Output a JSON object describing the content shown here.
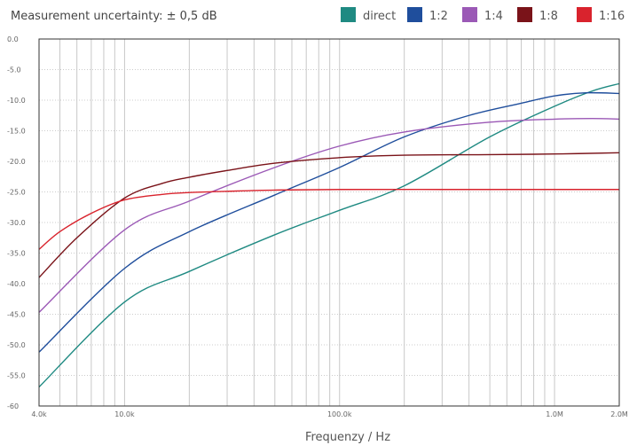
{
  "chart_data": {
    "type": "line",
    "title": "Measurement uncertainty: ± 0,5 dB",
    "xlabel": "Frequenzy / Hz",
    "ylabel": "",
    "x_scale": "log",
    "xlim": [
      4000,
      2000000
    ],
    "ylim": [
      -60,
      0
    ],
    "grid": true,
    "legend_position": "top-right",
    "y_ticks": [
      "0.0",
      "-5.0",
      "-10.0",
      "-15.0",
      "-20.0",
      "-25.0",
      "-30.0",
      "-35.0",
      "-40.0",
      "-45.0",
      "-50.0",
      "-55.0",
      "-60"
    ],
    "y_tick_values": [
      0,
      -5,
      -10,
      -15,
      -20,
      -25,
      -30,
      -35,
      -40,
      -45,
      -50,
      -55,
      -60
    ],
    "x_ticks": [
      {
        "label": "4.0k",
        "value": 4000
      },
      {
        "label": "10.0k",
        "value": 10000
      },
      {
        "label": "100.0k",
        "value": 100000
      },
      {
        "label": "1.0M",
        "value": 1000000
      },
      {
        "label": "2.0M",
        "value": 2000000
      }
    ],
    "series": [
      {
        "name": "direct",
        "color": "#1f8a82",
        "x": [
          4000,
          10000,
          20000,
          50000,
          100000,
          200000,
          500000,
          1000000,
          1500000,
          2000000
        ],
        "y": [
          -56.9,
          -43.0,
          -38.0,
          -32.0,
          -28.0,
          -24.0,
          -16.0,
          -11.0,
          -8.5,
          -7.3
        ]
      },
      {
        "name": "1:2",
        "color": "#1f4e9c",
        "x": [
          4000,
          10000,
          20000,
          50000,
          100000,
          200000,
          400000,
          700000,
          1000000,
          1400000,
          2000000
        ],
        "y": [
          -51.2,
          -37.5,
          -31.5,
          -25.5,
          -21.0,
          -16.0,
          -12.5,
          -10.5,
          -9.3,
          -8.8,
          -8.9
        ]
      },
      {
        "name": "1:4",
        "color": "#9b59b6",
        "x": [
          4000,
          10000,
          20000,
          50000,
          100000,
          200000,
          500000,
          1000000,
          1500000,
          2000000
        ],
        "y": [
          -44.7,
          -31.2,
          -26.5,
          -21.0,
          -17.5,
          -15.2,
          -13.6,
          -13.1,
          -13.0,
          -13.1
        ]
      },
      {
        "name": "1:8",
        "color": "#7a1319",
        "x": [
          4000,
          6000,
          10000,
          15000,
          20000,
          30000,
          50000,
          100000,
          200000,
          500000,
          1000000,
          2000000
        ],
        "y": [
          -39.0,
          -32.5,
          -26.0,
          -23.6,
          -22.6,
          -21.5,
          -20.3,
          -19.4,
          -19.0,
          -18.9,
          -18.8,
          -18.6
        ]
      },
      {
        "name": "1:16",
        "color": "#d9232d",
        "x": [
          4000,
          5000,
          7000,
          10000,
          15000,
          20000,
          30000,
          50000,
          100000,
          300000,
          1000000,
          2000000
        ],
        "y": [
          -34.4,
          -31.5,
          -28.5,
          -26.3,
          -25.4,
          -25.1,
          -24.9,
          -24.7,
          -24.6,
          -24.6,
          -24.6,
          -24.6
        ]
      }
    ]
  }
}
